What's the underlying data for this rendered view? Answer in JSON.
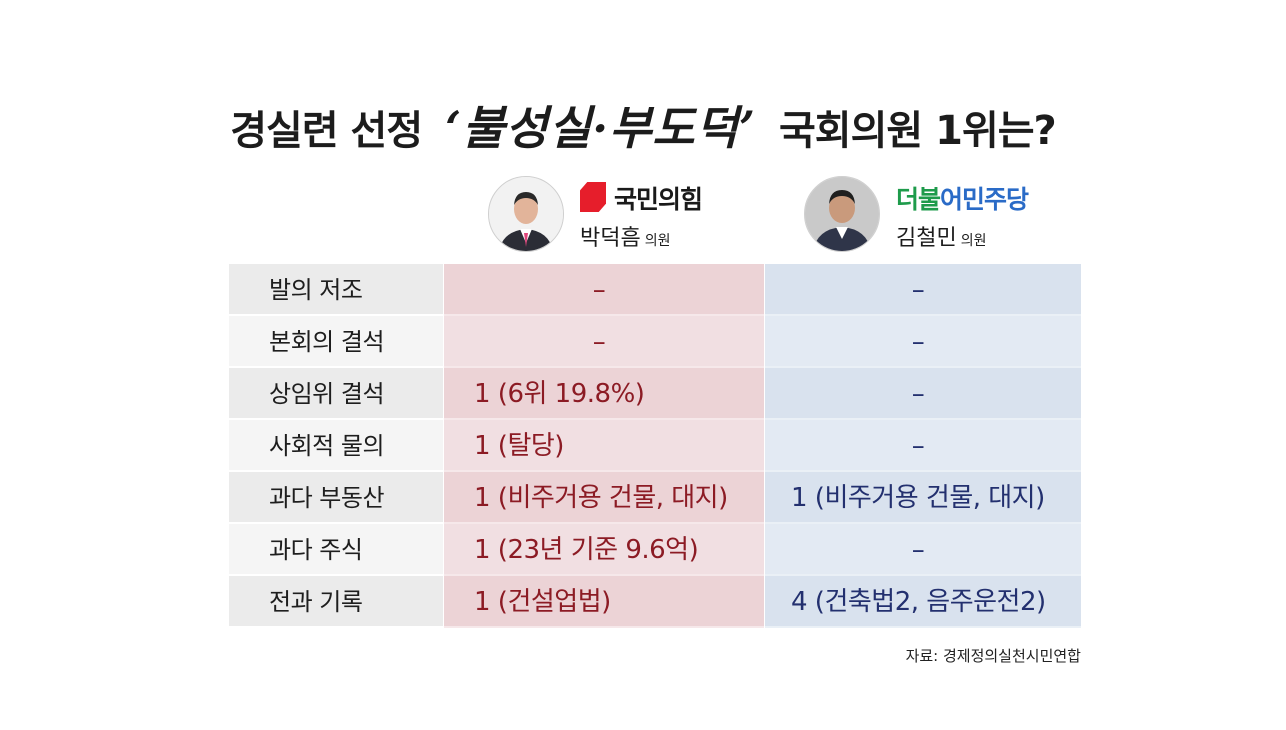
{
  "title": {
    "prefix": "경실련 선정",
    "highlight": "‘불성실·부도덕’",
    "suffix": "국회의원 1위는?"
  },
  "left_party": {
    "party_name": "국민의힘",
    "person_name": "박덕흠",
    "person_title": "의원",
    "accent": "#e61e2b"
  },
  "right_party": {
    "party_name_part1": "더불",
    "party_name_part2": "어민주당",
    "person_name": "김철민",
    "person_title": "의원",
    "accent": "#2a6bc7"
  },
  "rows": [
    {
      "label": "발의 저조",
      "left": "–",
      "right": "–"
    },
    {
      "label": "본회의 결석",
      "left": "–",
      "right": "–"
    },
    {
      "label": "상임위 결석",
      "left": "1 (6위 19.8%)",
      "right": "–"
    },
    {
      "label": "사회적 물의",
      "left": "1 (탈당)",
      "right": "–"
    },
    {
      "label": "과다 부동산",
      "left": "1 (비주거용 건물, 대지)",
      "right": "1 (비주거용 건물, 대지)"
    },
    {
      "label": "과다 주식",
      "left": "1 (23년 기준 9.6억)",
      "right": "–"
    },
    {
      "label": "전과 기록",
      "left": "1 (건설업법)",
      "right": "4 (건축법2, 음주운전2)"
    }
  ],
  "source": "자료: 경제정의실천시민연합"
}
